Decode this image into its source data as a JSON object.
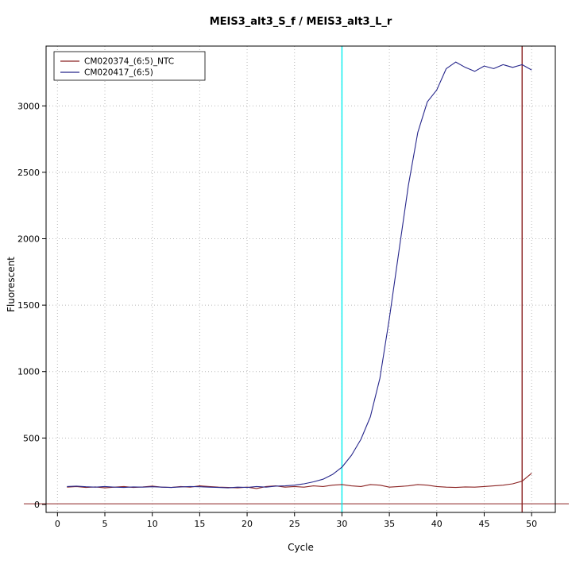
{
  "chart_data": {
    "type": "line",
    "title": "MEIS3_alt3_S_f / MEIS3_alt3_L_r",
    "xlabel": "Cycle",
    "ylabel": "Fluorescent",
    "xlim": [
      -1.2,
      52.5
    ],
    "ylim": [
      -60,
      3450
    ],
    "x_ticks": [
      0,
      5,
      10,
      15,
      20,
      25,
      30,
      35,
      40,
      45,
      50
    ],
    "y_ticks": [
      0,
      500,
      1000,
      1500,
      2000,
      2500,
      3000
    ],
    "grid": "dotted",
    "legend_position": "top-left",
    "series": [
      {
        "name": "CM020374_(6:5)_NTC",
        "color": "#8B2323",
        "start_cycle": 1,
        "values": [
          130,
          135,
          128,
          132,
          125,
          130,
          135,
          128,
          132,
          138,
          130,
          128,
          135,
          130,
          140,
          135,
          130,
          128,
          125,
          130,
          120,
          135,
          140,
          130,
          135,
          130,
          140,
          135,
          145,
          150,
          140,
          135,
          150,
          145,
          130,
          135,
          140,
          150,
          145,
          135,
          130,
          128,
          132,
          130,
          135,
          140,
          145,
          155,
          175,
          235
        ]
      },
      {
        "name": "CM020417_(6:5)",
        "color": "#26268B",
        "start_cycle": 1,
        "values": [
          135,
          138,
          133,
          130,
          135,
          130,
          128,
          132,
          130,
          133,
          130,
          128,
          132,
          135,
          133,
          130,
          128,
          125,
          130,
          128,
          135,
          130,
          138,
          140,
          145,
          155,
          170,
          190,
          225,
          280,
          370,
          490,
          660,
          950,
          1400,
          1900,
          2400,
          2800,
          3030,
          3120,
          3280,
          3330,
          3290,
          3260,
          3300,
          3280,
          3310,
          3290,
          3310,
          3270
        ]
      }
    ],
    "vlines": [
      {
        "x": 30,
        "color": "#00EEEE",
        "name": "cyan-threshold-cycle-line"
      },
      {
        "x": 49,
        "color": "#8B2323",
        "name": "red-marker-cycle-line"
      }
    ],
    "hline": {
      "y": 5,
      "color": "#8B2323",
      "name": "baseline-threshold-line"
    }
  }
}
